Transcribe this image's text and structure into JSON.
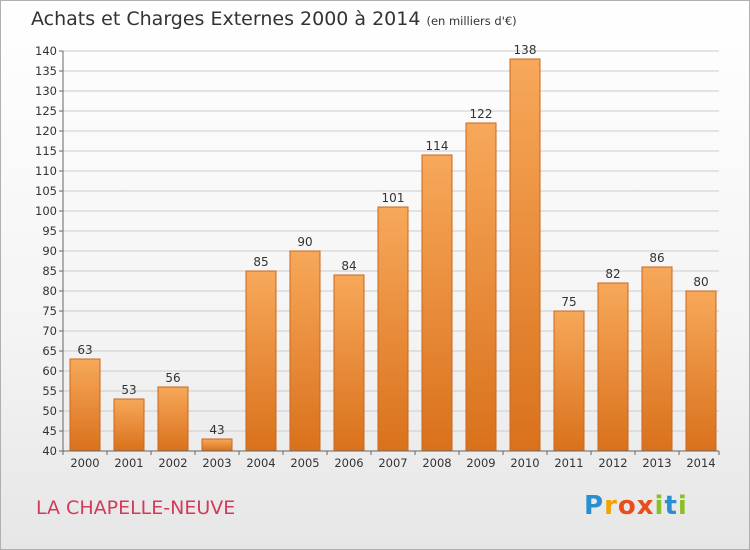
{
  "header": {
    "title": "Achats et Charges Externes 2000 à 2014",
    "subtitle": "(en milliers d'€)"
  },
  "footer": {
    "commune": "LA CHAPELLE-NEUVE"
  },
  "brand": {
    "letters": [
      "P",
      "r",
      "o",
      "x",
      "i",
      "t",
      "i"
    ],
    "colors": [
      "#2a8fd0",
      "#f3a200",
      "#e84e1b",
      "#e84e1b",
      "#8cbf26",
      "#2a8fd0",
      "#8cbf26"
    ]
  },
  "colors": {
    "bar_light": "#f7a85a",
    "bar_dark": "#d9711c",
    "bar_edge": "#c9671a",
    "grid": "#cccccc",
    "text": "#333333",
    "commune": "#d13b5a"
  },
  "chart_data": {
    "type": "bar",
    "title": "Achats et Charges Externes 2000 à 2014",
    "subtitle": "(en milliers d'€)",
    "xlabel": "",
    "ylabel": "",
    "categories": [
      "2000",
      "2001",
      "2002",
      "2003",
      "2004",
      "2005",
      "2006",
      "2007",
      "2008",
      "2009",
      "2010",
      "2011",
      "2012",
      "2013",
      "2014"
    ],
    "values": [
      63,
      53,
      56,
      43,
      85,
      90,
      84,
      101,
      114,
      122,
      138,
      75,
      82,
      86,
      80
    ],
    "ylim": [
      40,
      140
    ],
    "yticks": [
      40,
      45,
      50,
      55,
      60,
      65,
      70,
      75,
      80,
      85,
      90,
      95,
      100,
      105,
      110,
      115,
      120,
      125,
      130,
      135,
      140
    ],
    "grid": true,
    "legend": "none"
  }
}
